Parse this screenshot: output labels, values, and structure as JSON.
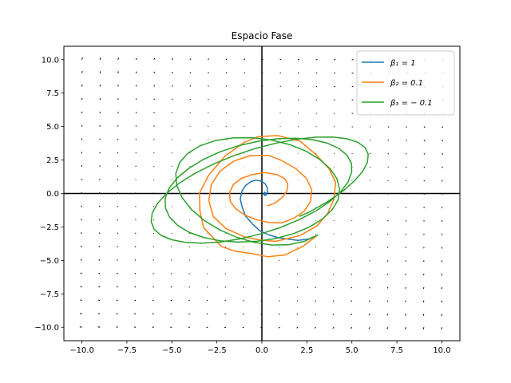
{
  "chart_data": {
    "type": "line",
    "title": "Espacio Fase",
    "xlabel": "",
    "ylabel": "",
    "xlim": [
      -11,
      11
    ],
    "ylim": [
      -11,
      11
    ],
    "xticks": [
      -10,
      -7.5,
      -5,
      -2.5,
      0,
      2.5,
      5,
      7.5,
      10
    ],
    "yticks": [
      -10,
      -7.5,
      -5,
      -2.5,
      0,
      2.5,
      5,
      7.5,
      10
    ],
    "xtick_labels": [
      "−10.0",
      "−7.5",
      "−5.0",
      "−2.5",
      "0.0",
      "2.5",
      "5.0",
      "7.5",
      "10.0"
    ],
    "ytick_labels": [
      "−10.0",
      "−7.5",
      "−5.0",
      "−2.5",
      "0.0",
      "2.5",
      "5.0",
      "7.5",
      "10.0"
    ],
    "grid": false,
    "legend_position": "top-right",
    "quiver": {
      "x_range": [
        -10,
        10
      ],
      "y_range": [
        -10,
        10
      ],
      "count": 21,
      "arrow_color": "#000000"
    },
    "series": [
      {
        "name": "β₁ = 1",
        "color": "#1f77b4",
        "x": [
          3.1,
          2.6,
          2.0,
          1.4,
          0.9,
          0.4,
          -0.1,
          -0.5,
          -0.9,
          -1.1,
          -1.2,
          -1.1,
          -0.9,
          -0.6,
          -0.3,
          0.0,
          0.2,
          0.3,
          0.3,
          0.25,
          0.15,
          0.1,
          0.15,
          0.2,
          0.2,
          0.1
        ],
        "y": [
          -3.1,
          -3.4,
          -3.5,
          -3.4,
          -3.3,
          -3.1,
          -2.8,
          -2.3,
          -1.7,
          -1.0,
          -0.4,
          0.2,
          0.6,
          0.9,
          1.0,
          0.9,
          0.7,
          0.4,
          0.1,
          -0.1,
          -0.15,
          -0.05,
          0.1,
          0.05,
          -0.05,
          0.0
        ]
      },
      {
        "name": "β₂ = 0.1",
        "color": "#ff7f0e",
        "x": [
          3.1,
          2.27,
          1.29,
          0.34,
          -0.43,
          -1.5,
          -2.25,
          -3.24,
          -3.44,
          -3.47,
          -2.96,
          -2.05,
          -0.98,
          -0.2,
          0.88,
          2.12,
          2.99,
          3.72,
          4.1,
          4.0,
          3.65,
          3.04,
          2.1,
          0.77,
          -0.06,
          -0.95,
          -2.0,
          -2.7,
          -2.95,
          -2.81,
          -2.34,
          -1.58,
          -0.64,
          0.35,
          1.05,
          1.9,
          2.48,
          2.77,
          2.7,
          2.35,
          1.81,
          1.1,
          0.4,
          -0.33,
          -0.96,
          -1.46,
          -1.76,
          -1.79,
          -1.58,
          -1.13,
          -0.53,
          0.16,
          0.82,
          1.26,
          1.44,
          1.4,
          1.15,
          0.75,
          0.32
        ],
        "y": [
          -3.1,
          -3.95,
          -4.59,
          -4.73,
          -4.52,
          -4.31,
          -3.95,
          -2.55,
          -1.3,
          0.02,
          1.37,
          2.79,
          3.82,
          4.25,
          4.33,
          3.91,
          2.93,
          1.86,
          0.86,
          -0.41,
          -1.5,
          -2.45,
          -3.15,
          -3.58,
          -3.49,
          -3.25,
          -2.62,
          -1.72,
          -0.53,
          0.65,
          1.65,
          2.41,
          2.83,
          2.85,
          2.5,
          1.85,
          1.12,
          0.26,
          -0.6,
          -1.33,
          -1.81,
          -2.2,
          -2.17,
          -1.95,
          -1.6,
          -1.14,
          -0.57,
          0.08,
          0.68,
          1.13,
          1.42,
          1.56,
          1.42,
          1.12,
          0.7,
          0.22,
          -0.26,
          -0.7,
          -0.92
        ]
      },
      {
        "name": "β₃ = − 0.1",
        "color": "#2ca02c",
        "x": [
          3.1,
          2.37,
          1.52,
          0.57,
          -0.4,
          -1.39,
          -2.34,
          -3.2,
          -3.91,
          -4.43,
          -4.73,
          -4.78,
          -4.57,
          -4.11,
          -3.43,
          -2.57,
          -1.58,
          -0.54,
          0.52,
          1.53,
          2.44,
          3.2,
          3.79,
          4.17,
          4.32,
          4.23,
          3.9,
          3.36,
          2.63,
          1.75,
          0.77,
          -0.27,
          -1.32,
          -2.33,
          -3.26,
          -4.06,
          -4.69,
          -5.13,
          -5.36,
          -5.37,
          -5.15,
          -4.7,
          -4.06,
          -3.26,
          -2.33,
          -1.3,
          -0.22,
          0.86,
          1.89,
          2.83,
          3.64,
          4.28,
          4.73,
          4.97,
          4.99,
          4.79,
          4.38,
          3.78,
          2.99,
          2.06,
          1.03,
          -0.07,
          -1.19,
          -2.28,
          -3.31,
          -4.23,
          -5.0,
          -5.6,
          -5.99,
          -6.15,
          -6.09,
          -5.79,
          -5.28,
          -4.57,
          -3.68,
          -2.66,
          -1.54,
          -0.37,
          0.81,
          1.95,
          3.0,
          3.94,
          4.72,
          5.33,
          5.73,
          5.91,
          5.86,
          5.6,
          5.12,
          4.46,
          3.62,
          2.65,
          2.1
        ],
        "y": [
          -3.1,
          -3.57,
          -3.82,
          -3.85,
          -3.66,
          -3.28,
          -2.72,
          -2.02,
          -1.2,
          -0.31,
          0.6,
          1.49,
          2.31,
          3.01,
          3.57,
          3.96,
          4.16,
          4.17,
          4.0,
          3.66,
          3.17,
          2.56,
          1.86,
          1.1,
          0.31,
          -0.48,
          -1.22,
          -1.91,
          -2.51,
          -3.0,
          -3.36,
          -3.57,
          -3.63,
          -3.53,
          -3.28,
          -2.89,
          -2.37,
          -1.76,
          -1.08,
          -0.35,
          0.41,
          1.16,
          1.88,
          2.54,
          3.11,
          3.57,
          3.9,
          4.09,
          4.13,
          4.02,
          3.76,
          3.37,
          2.86,
          2.26,
          1.59,
          0.87,
          0.13,
          -0.6,
          -1.31,
          -1.96,
          -2.54,
          -3.02,
          -3.38,
          -3.62,
          -3.71,
          -3.66,
          -3.46,
          -3.13,
          -2.67,
          -2.1,
          -1.44,
          -0.72,
          0.03,
          0.79,
          1.53,
          2.22,
          2.84,
          3.36,
          3.77,
          4.06,
          4.21,
          4.22,
          4.09,
          3.83,
          3.44,
          2.93,
          2.33,
          1.65,
          0.91,
          0.14,
          -0.63,
          -1.38,
          -1.7
        ]
      }
    ]
  }
}
